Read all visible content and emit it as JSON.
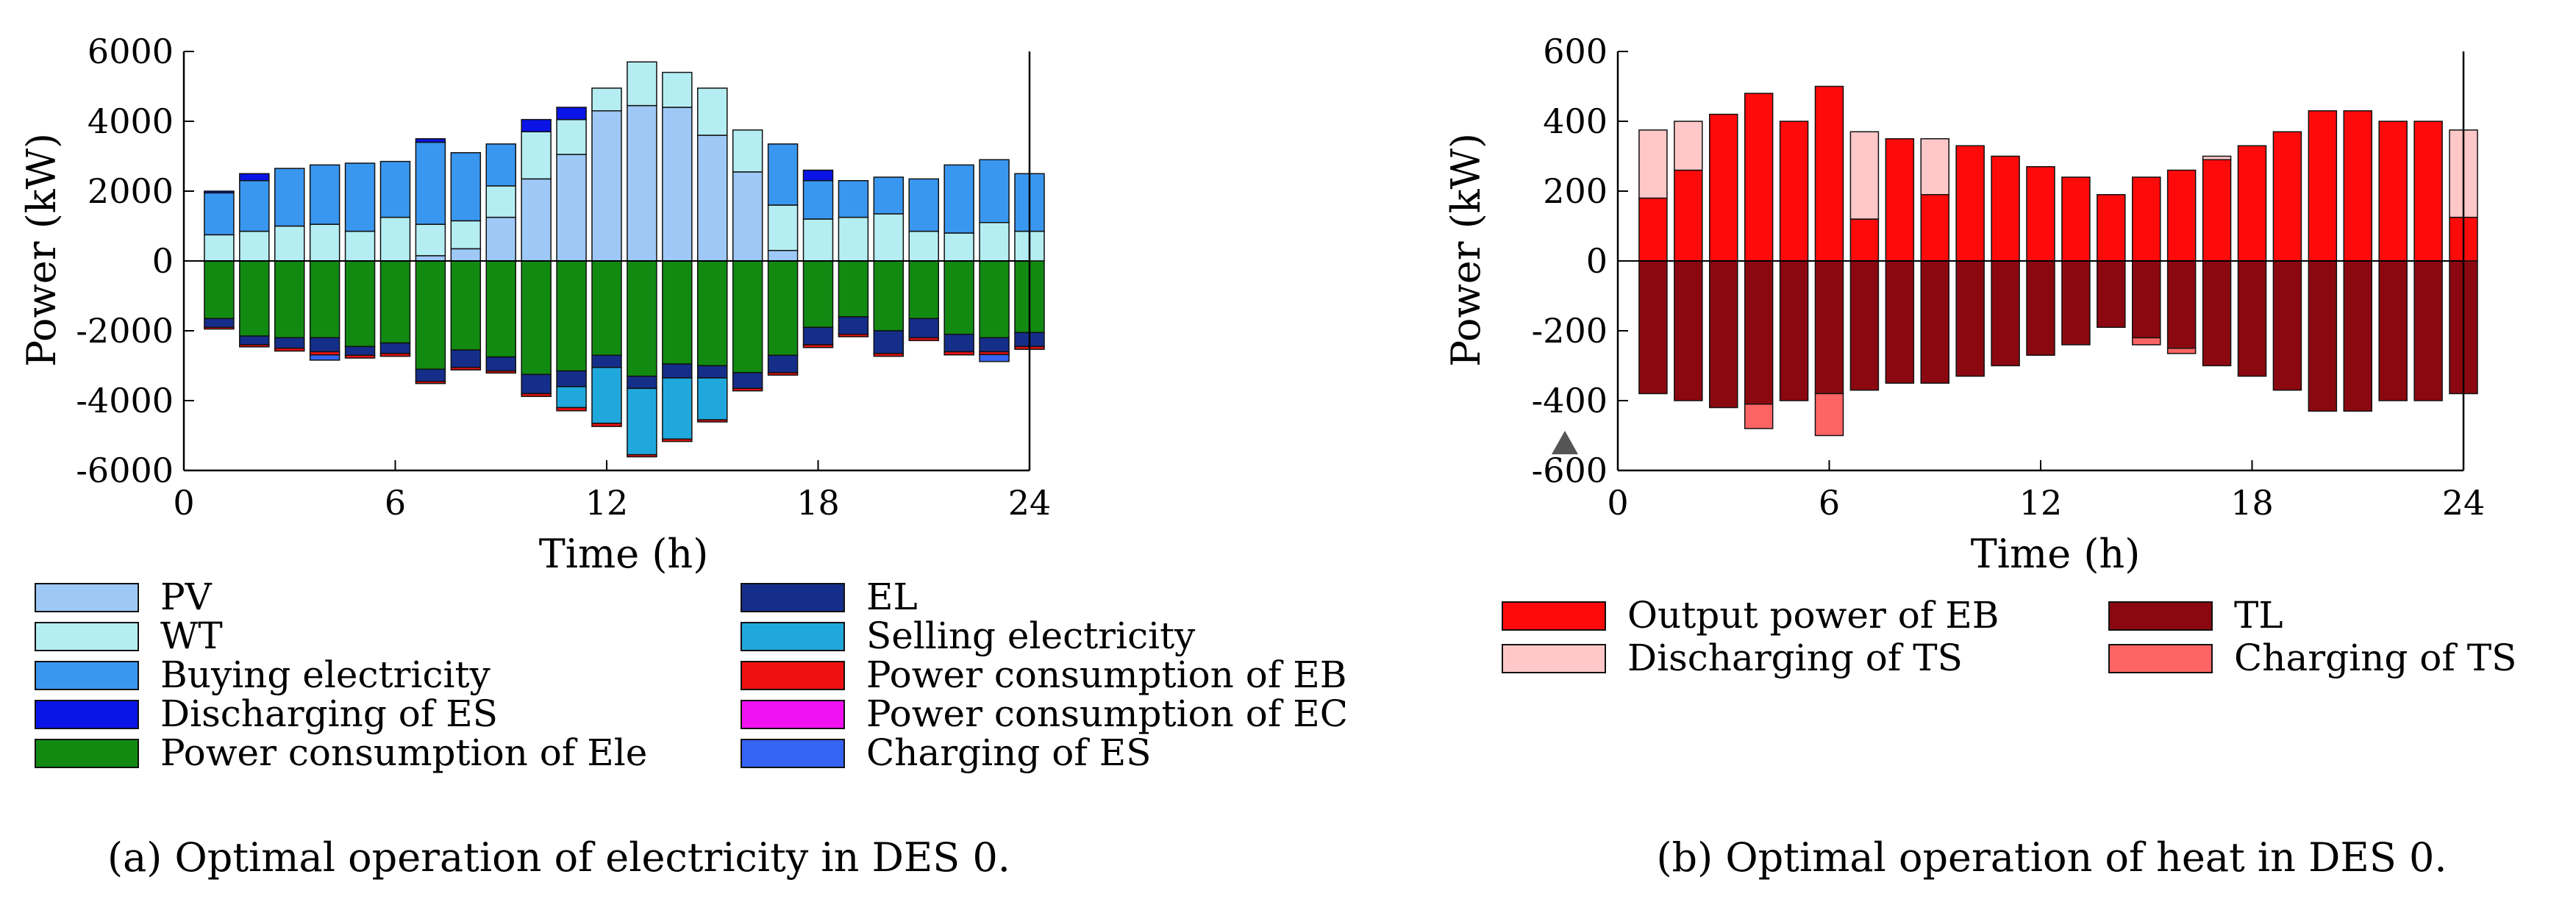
{
  "chart_data": [
    {
      "type": "bar",
      "stacked": true,
      "caption": "(a) Optimal operation of electricity in DES 0.",
      "xlabel": "Time (h)",
      "ylabel": "Power (kW)",
      "xlim": [
        0,
        24
      ],
      "ylim": [
        -6000,
        6000
      ],
      "xticks": [
        "0",
        "6",
        "12",
        "18",
        "24"
      ],
      "yticks": [
        "6000",
        "4000",
        "2000",
        "0",
        "-2000",
        "-4000",
        "-6000"
      ],
      "x": [
        1,
        2,
        3,
        4,
        5,
        6,
        7,
        8,
        9,
        10,
        11,
        12,
        13,
        14,
        15,
        16,
        17,
        18,
        19,
        20,
        21,
        22,
        23,
        24
      ],
      "series_positive": [
        {
          "name": "PV",
          "color": "#9ec9f7",
          "values": [
            0,
            0,
            0,
            0,
            0,
            0,
            150,
            350,
            1250,
            2350,
            3050,
            4300,
            4450,
            4400,
            3600,
            2550,
            300,
            0,
            0,
            0,
            0,
            0,
            0,
            0
          ]
        },
        {
          "name": "WT",
          "color": "#b4eef2",
          "values": [
            750,
            850,
            1000,
            1050,
            850,
            1250,
            900,
            800,
            900,
            1350,
            1000,
            650,
            1250,
            1000,
            1350,
            1200,
            1300,
            1200,
            1250,
            1350,
            850,
            800,
            1100,
            850
          ]
        },
        {
          "name": "Buying electricity",
          "color": "#3a97f0",
          "values": [
            1200,
            1450,
            1650,
            1700,
            1950,
            1600,
            2350,
            1950,
            1200,
            0,
            0,
            0,
            0,
            0,
            0,
            0,
            1750,
            1100,
            1050,
            1050,
            1500,
            1950,
            1800,
            1650
          ]
        },
        {
          "name": "Discharging of ES",
          "color": "#0a14e6",
          "values": [
            50,
            200,
            0,
            0,
            0,
            0,
            100,
            0,
            0,
            350,
            350,
            0,
            0,
            0,
            0,
            0,
            0,
            300,
            0,
            0,
            0,
            0,
            0,
            0
          ]
        }
      ],
      "series_negative": [
        {
          "name": "Power consumption of Ele",
          "color": "#128a12",
          "values": [
            -1650,
            -2150,
            -2200,
            -2200,
            -2450,
            -2350,
            -3100,
            -2550,
            -2750,
            -3250,
            -3150,
            -2700,
            -3300,
            -2950,
            -3000,
            -3200,
            -2700,
            -1900,
            -1600,
            -2000,
            -1650,
            -2100,
            -2200,
            -2050
          ]
        },
        {
          "name": "EL",
          "color": "#152e8a",
          "values": [
            -250,
            -250,
            -300,
            -400,
            -250,
            -300,
            -350,
            -500,
            -400,
            -550,
            -450,
            -350,
            -350,
            -400,
            -350,
            -450,
            -500,
            -500,
            -500,
            -650,
            -550,
            -500,
            -400,
            -400
          ]
        },
        {
          "name": "Selling electricity",
          "color": "#20a8dc",
          "values": [
            0,
            0,
            0,
            0,
            0,
            0,
            0,
            0,
            0,
            0,
            -600,
            -1600,
            -1900,
            -1750,
            -1200,
            0,
            0,
            0,
            0,
            0,
            0,
            0,
            0,
            0
          ]
        },
        {
          "name": "Power consumption of EB",
          "color": "#ee1111",
          "values": [
            -50,
            -60,
            -80,
            -90,
            -80,
            -80,
            -60,
            -70,
            -60,
            -80,
            -90,
            -90,
            -60,
            -70,
            -60,
            -70,
            -70,
            -80,
            -70,
            -80,
            -80,
            -90,
            -80,
            -80
          ]
        },
        {
          "name": "Power consumption of EC",
          "color": "#f012f0",
          "values": [
            0,
            0,
            0,
            0,
            0,
            0,
            0,
            0,
            0,
            0,
            0,
            0,
            0,
            0,
            0,
            0,
            0,
            0,
            0,
            0,
            0,
            0,
            0,
            0
          ]
        },
        {
          "name": "Charging of ES",
          "color": "#3563f2",
          "values": [
            0,
            0,
            0,
            -150,
            0,
            0,
            0,
            0,
            0,
            0,
            0,
            0,
            0,
            0,
            0,
            0,
            0,
            0,
            0,
            0,
            0,
            0,
            -200,
            0
          ]
        }
      ],
      "legend": [
        "PV",
        "WT",
        "Buying electricity",
        "Discharging of ES",
        "Power consumption of Ele",
        "EL",
        "Selling electricity",
        "Power consumption of EB",
        "Power consumption of EC",
        "Charging of ES"
      ]
    },
    {
      "type": "bar",
      "stacked": true,
      "caption": "(b) Optimal operation of heat in DES 0.",
      "xlabel": "Time (h)",
      "ylabel": "Power (kW)",
      "xlim": [
        0,
        24
      ],
      "ylim": [
        -600,
        600
      ],
      "xticks": [
        "0",
        "6",
        "12",
        "18",
        "24"
      ],
      "yticks": [
        "600",
        "400",
        "200",
        "0",
        "-200",
        "-400",
        "-600"
      ],
      "x": [
        1,
        2,
        3,
        4,
        5,
        6,
        7,
        8,
        9,
        10,
        11,
        12,
        13,
        14,
        15,
        16,
        17,
        18,
        19,
        20,
        21,
        22,
        23,
        24
      ],
      "series_positive": [
        {
          "name": "Output power of EB",
          "color": "#ff0a0a",
          "values": [
            180,
            260,
            420,
            480,
            400,
            500,
            120,
            350,
            190,
            330,
            300,
            270,
            240,
            190,
            240,
            260,
            290,
            330,
            370,
            430,
            430,
            400,
            400,
            125
          ]
        },
        {
          "name": "Discharging of TS",
          "color": "#ffc8c8",
          "values": [
            195,
            140,
            0,
            0,
            0,
            0,
            250,
            0,
            160,
            0,
            0,
            0,
            0,
            0,
            0,
            0,
            10,
            0,
            0,
            0,
            0,
            0,
            0,
            250
          ]
        }
      ],
      "series_negative": [
        {
          "name": "TL",
          "color": "#8c0810",
          "values": [
            -380,
            -400,
            -420,
            -410,
            -400,
            -380,
            -370,
            -350,
            -350,
            -330,
            -300,
            -270,
            -240,
            -190,
            -220,
            -250,
            -300,
            -330,
            -370,
            -430,
            -430,
            -400,
            -400,
            -380
          ]
        },
        {
          "name": "Charging of TS",
          "color": "#ff6464",
          "values": [
            0,
            0,
            0,
            -70,
            0,
            -120,
            0,
            0,
            0,
            0,
            0,
            0,
            0,
            0,
            -20,
            -15,
            0,
            0,
            0,
            0,
            0,
            0,
            0,
            0
          ]
        }
      ],
      "legend": [
        "Output power of EB",
        "Discharging of TS",
        "TL",
        "Charging of TS"
      ]
    }
  ]
}
